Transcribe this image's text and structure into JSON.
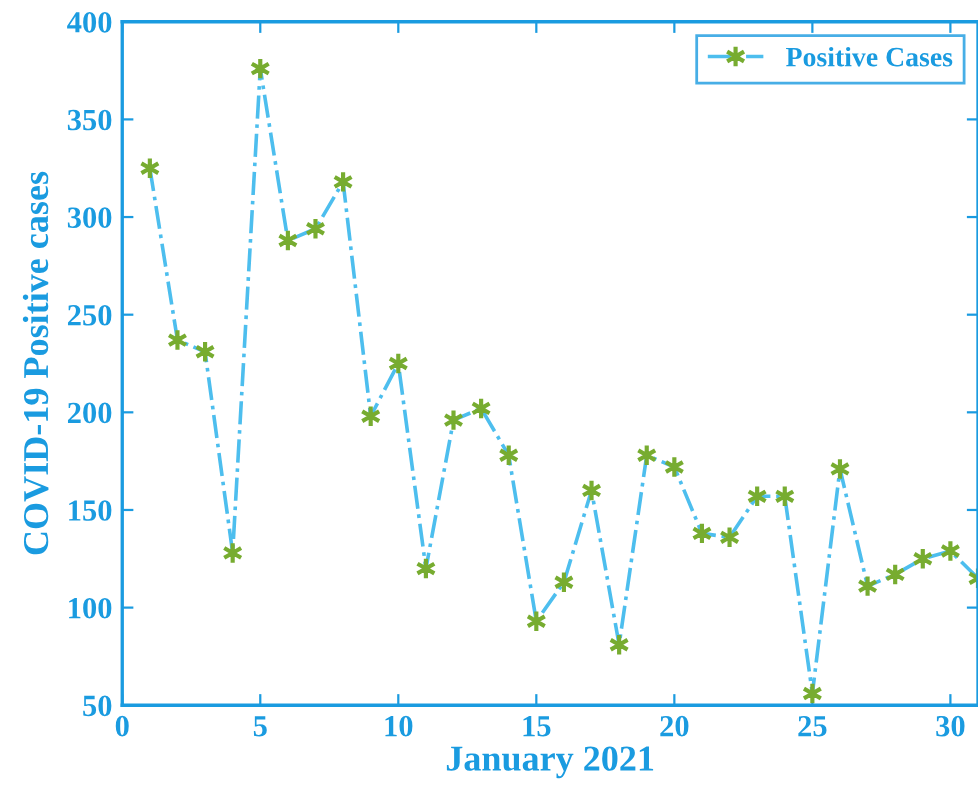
{
  "chart_data": {
    "type": "line",
    "xlabel": "January 2021",
    "ylabel": "COVID-19 Positive cases",
    "x": [
      1,
      2,
      3,
      4,
      5,
      6,
      7,
      8,
      9,
      10,
      11,
      12,
      13,
      14,
      15,
      16,
      17,
      18,
      19,
      20,
      21,
      22,
      23,
      24,
      25,
      26,
      27,
      28,
      29,
      30,
      31
    ],
    "series": [
      {
        "name": "Positive Cases",
        "color": "#4dbeee",
        "values": [
          325,
          237,
          231,
          128,
          376,
          288,
          294,
          318,
          198,
          225,
          120,
          196,
          202,
          178,
          93,
          113,
          160,
          81,
          178,
          172,
          138,
          136,
          157,
          157,
          56,
          171,
          111,
          117,
          125,
          129,
          115
        ]
      }
    ],
    "xlim": [
      0,
      31
    ],
    "xticks": [
      0,
      5,
      10,
      15,
      20,
      25,
      30
    ],
    "ylim": [
      50,
      400
    ],
    "yticks": [
      50,
      100,
      150,
      200,
      250,
      300,
      350,
      400
    ],
    "grid": false,
    "legend": "top right",
    "marker": "cross",
    "line_style": "dashdot"
  }
}
